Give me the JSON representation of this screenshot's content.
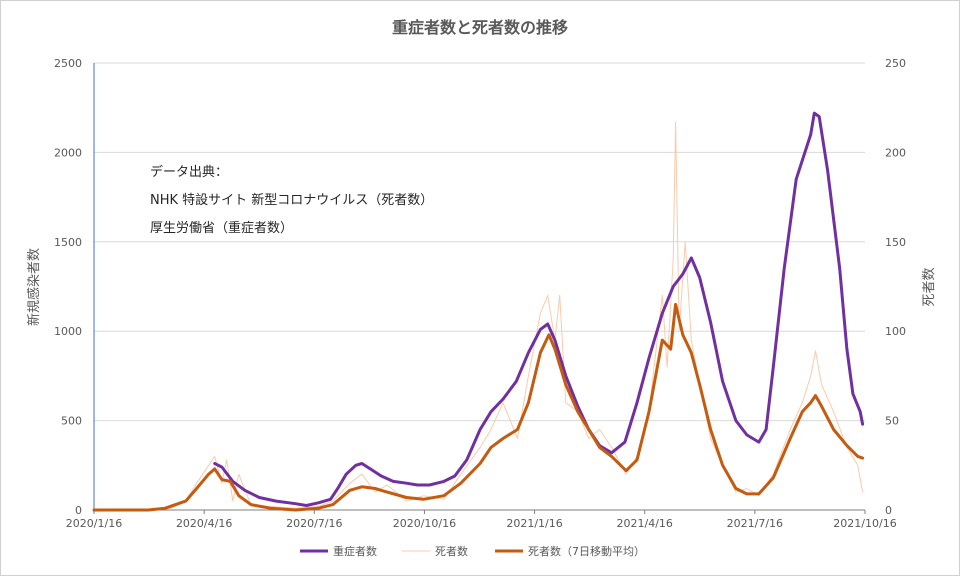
{
  "chart_data": {
    "type": "line",
    "title": "重症者数と死者数の推移",
    "ylabel_left": "新規感染者数",
    "ylabel_right": "死者数",
    "ylim_left": [
      0,
      2500
    ],
    "ylim_right": [
      0,
      250
    ],
    "yticks_left": [
      "0",
      "500",
      "1000",
      "1500",
      "2000",
      "2500"
    ],
    "yticks_right": [
      "0",
      "50",
      "100",
      "150",
      "200",
      "250"
    ],
    "xlim": [
      "2020-01-16",
      "2021-10-16"
    ],
    "xtick_labels": [
      "2020/1/16",
      "2020/4/16",
      "2020/7/16",
      "2020/10/16",
      "2021/1/16",
      "2021/4/16",
      "2021/7/16",
      "2021/10/16"
    ],
    "grid": "horizontal",
    "legend_position": "bottom",
    "annotation_lines": [
      "データ出典：",
      "NHK 特設サイト 新型コロナウイルス（死者数）",
      "厚生労働省（重症者数）"
    ],
    "series": [
      {
        "name": "重症者数",
        "axis": "left",
        "color": "#7030a0",
        "points": [
          [
            "2020-04-25",
            260
          ],
          [
            "2020-05-01",
            240
          ],
          [
            "2020-05-10",
            160
          ],
          [
            "2020-05-20",
            110
          ],
          [
            "2020-06-01",
            70
          ],
          [
            "2020-06-15",
            50
          ],
          [
            "2020-07-01",
            35
          ],
          [
            "2020-07-10",
            25
          ],
          [
            "2020-07-20",
            40
          ],
          [
            "2020-07-30",
            60
          ],
          [
            "2020-08-05",
            120
          ],
          [
            "2020-08-12",
            200
          ],
          [
            "2020-08-20",
            250
          ],
          [
            "2020-08-25",
            260
          ],
          [
            "2020-09-01",
            230
          ],
          [
            "2020-09-10",
            190
          ],
          [
            "2020-09-20",
            160
          ],
          [
            "2020-10-01",
            150
          ],
          [
            "2020-10-10",
            140
          ],
          [
            "2020-10-20",
            140
          ],
          [
            "2020-11-01",
            160
          ],
          [
            "2020-11-10",
            190
          ],
          [
            "2020-11-20",
            280
          ],
          [
            "2020-12-01",
            450
          ],
          [
            "2020-12-10",
            550
          ],
          [
            "2020-12-20",
            620
          ],
          [
            "2020-12-31",
            720
          ],
          [
            "2021-01-10",
            880
          ],
          [
            "2021-01-20",
            1010
          ],
          [
            "2021-01-26",
            1040
          ],
          [
            "2021-02-01",
            950
          ],
          [
            "2021-02-10",
            750
          ],
          [
            "2021-02-20",
            580
          ],
          [
            "2021-03-01",
            450
          ],
          [
            "2021-03-10",
            360
          ],
          [
            "2021-03-20",
            320
          ],
          [
            "2021-03-31",
            380
          ],
          [
            "2021-04-10",
            600
          ],
          [
            "2021-04-20",
            850
          ],
          [
            "2021-05-01",
            1100
          ],
          [
            "2021-05-10",
            1250
          ],
          [
            "2021-05-18",
            1320
          ],
          [
            "2021-05-25",
            1410
          ],
          [
            "2021-06-01",
            1300
          ],
          [
            "2021-06-10",
            1050
          ],
          [
            "2021-06-20",
            720
          ],
          [
            "2021-07-01",
            500
          ],
          [
            "2021-07-10",
            420
          ],
          [
            "2021-07-20",
            380
          ],
          [
            "2021-07-26",
            450
          ],
          [
            "2021-08-01",
            800
          ],
          [
            "2021-08-10",
            1350
          ],
          [
            "2021-08-20",
            1850
          ],
          [
            "2021-09-01",
            2100
          ],
          [
            "2021-09-04",
            2220
          ],
          [
            "2021-09-08",
            2200
          ],
          [
            "2021-09-15",
            1900
          ],
          [
            "2021-09-25",
            1350
          ],
          [
            "2021-10-01",
            900
          ],
          [
            "2021-10-06",
            650
          ],
          [
            "2021-10-12",
            550
          ],
          [
            "2021-10-14",
            480
          ]
        ]
      },
      {
        "name": "死者数",
        "axis": "right",
        "color": "#f8cbad",
        "points": [
          [
            "2020-03-01",
            0
          ],
          [
            "2020-03-20",
            1
          ],
          [
            "2020-04-01",
            5
          ],
          [
            "2020-04-10",
            15
          ],
          [
            "2020-04-20",
            25
          ],
          [
            "2020-04-25",
            30
          ],
          [
            "2020-05-01",
            15
          ],
          [
            "2020-05-05",
            28
          ],
          [
            "2020-05-10",
            5
          ],
          [
            "2020-05-15",
            20
          ],
          [
            "2020-05-25",
            3
          ],
          [
            "2020-06-10",
            2
          ],
          [
            "2020-07-01",
            1
          ],
          [
            "2020-07-20",
            2
          ],
          [
            "2020-08-01",
            5
          ],
          [
            "2020-08-15",
            15
          ],
          [
            "2020-08-25",
            20
          ],
          [
            "2020-09-05",
            10
          ],
          [
            "2020-09-15",
            14
          ],
          [
            "2020-10-01",
            5
          ],
          [
            "2020-10-15",
            8
          ],
          [
            "2020-11-01",
            6
          ],
          [
            "2020-11-15",
            20
          ],
          [
            "2020-12-01",
            35
          ],
          [
            "2020-12-10",
            45
          ],
          [
            "2020-12-20",
            60
          ],
          [
            "2021-01-01",
            40
          ],
          [
            "2021-01-10",
            75
          ],
          [
            "2021-01-20",
            110
          ],
          [
            "2021-01-26",
            120
          ],
          [
            "2021-02-01",
            95
          ],
          [
            "2021-02-05",
            120
          ],
          [
            "2021-02-10",
            60
          ],
          [
            "2021-02-20",
            55
          ],
          [
            "2021-03-01",
            40
          ],
          [
            "2021-03-10",
            45
          ],
          [
            "2021-03-20",
            35
          ],
          [
            "2021-04-01",
            20
          ],
          [
            "2021-04-10",
            30
          ],
          [
            "2021-04-20",
            55
          ],
          [
            "2021-05-01",
            120
          ],
          [
            "2021-05-05",
            80
          ],
          [
            "2021-05-10",
            140
          ],
          [
            "2021-05-12",
            217
          ],
          [
            "2021-05-15",
            100
          ],
          [
            "2021-05-20",
            150
          ],
          [
            "2021-05-25",
            95
          ],
          [
            "2021-06-01",
            70
          ],
          [
            "2021-06-10",
            40
          ],
          [
            "2021-06-20",
            25
          ],
          [
            "2021-07-01",
            10
          ],
          [
            "2021-07-10",
            12
          ],
          [
            "2021-07-20",
            8
          ],
          [
            "2021-08-01",
            20
          ],
          [
            "2021-08-15",
            45
          ],
          [
            "2021-08-25",
            60
          ],
          [
            "2021-09-01",
            75
          ],
          [
            "2021-09-05",
            89
          ],
          [
            "2021-09-10",
            70
          ],
          [
            "2021-09-20",
            55
          ],
          [
            "2021-10-01",
            35
          ],
          [
            "2021-10-10",
            25
          ],
          [
            "2021-10-14",
            10
          ]
        ]
      },
      {
        "name": "死者数（7日移動平均）",
        "axis": "right",
        "color": "#c55a11",
        "points": [
          [
            "2020-01-16",
            0
          ],
          [
            "2020-03-01",
            0
          ],
          [
            "2020-03-15",
            1
          ],
          [
            "2020-04-01",
            5
          ],
          [
            "2020-04-10",
            12
          ],
          [
            "2020-04-20",
            20
          ],
          [
            "2020-04-25",
            23
          ],
          [
            "2020-05-01",
            17
          ],
          [
            "2020-05-08",
            16
          ],
          [
            "2020-05-15",
            8
          ],
          [
            "2020-05-25",
            3
          ],
          [
            "2020-06-10",
            1
          ],
          [
            "2020-07-01",
            0
          ],
          [
            "2020-07-20",
            1
          ],
          [
            "2020-08-01",
            3
          ],
          [
            "2020-08-15",
            11
          ],
          [
            "2020-08-25",
            13
          ],
          [
            "2020-09-05",
            12
          ],
          [
            "2020-09-15",
            10
          ],
          [
            "2020-10-01",
            7
          ],
          [
            "2020-10-15",
            6
          ],
          [
            "2020-11-01",
            8
          ],
          [
            "2020-11-15",
            15
          ],
          [
            "2020-12-01",
            26
          ],
          [
            "2020-12-10",
            35
          ],
          [
            "2020-12-20",
            40
          ],
          [
            "2021-01-01",
            45
          ],
          [
            "2021-01-10",
            60
          ],
          [
            "2021-01-20",
            88
          ],
          [
            "2021-01-27",
            98
          ],
          [
            "2021-02-01",
            90
          ],
          [
            "2021-02-10",
            70
          ],
          [
            "2021-02-20",
            55
          ],
          [
            "2021-03-01",
            45
          ],
          [
            "2021-03-10",
            35
          ],
          [
            "2021-03-20",
            30
          ],
          [
            "2021-04-01",
            22
          ],
          [
            "2021-04-10",
            28
          ],
          [
            "2021-04-20",
            55
          ],
          [
            "2021-05-01",
            95
          ],
          [
            "2021-05-08",
            90
          ],
          [
            "2021-05-12",
            115
          ],
          [
            "2021-05-18",
            98
          ],
          [
            "2021-05-25",
            88
          ],
          [
            "2021-06-01",
            70
          ],
          [
            "2021-06-10",
            45
          ],
          [
            "2021-06-20",
            25
          ],
          [
            "2021-07-01",
            12
          ],
          [
            "2021-07-10",
            9
          ],
          [
            "2021-07-20",
            9
          ],
          [
            "2021-08-01",
            18
          ],
          [
            "2021-08-15",
            40
          ],
          [
            "2021-08-25",
            55
          ],
          [
            "2021-09-01",
            60
          ],
          [
            "2021-09-05",
            64
          ],
          [
            "2021-09-10",
            58
          ],
          [
            "2021-09-20",
            45
          ],
          [
            "2021-10-01",
            36
          ],
          [
            "2021-10-10",
            30
          ],
          [
            "2021-10-14",
            29
          ]
        ]
      }
    ]
  }
}
